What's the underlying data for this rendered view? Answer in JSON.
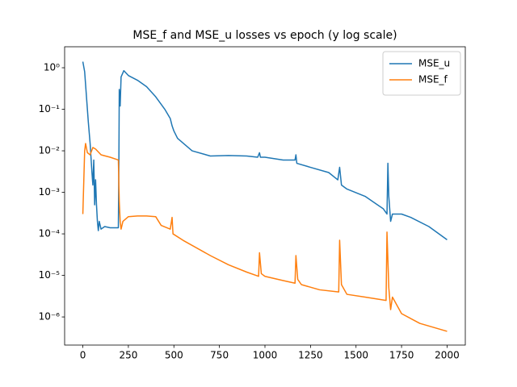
{
  "chart_data": {
    "type": "line",
    "title": "MSE_f and MSE_u losses vs epoch (y log scale)",
    "xlim": [
      -100,
      2100
    ],
    "xticks": [
      0,
      250,
      500,
      750,
      1000,
      1250,
      1500,
      1750,
      2000
    ],
    "ylim": [
      2.1e-07,
      3.2
    ],
    "log_y": true,
    "legend": "upper right",
    "yticks": [
      {
        "value": 1e-06,
        "label": "10⁻⁶"
      },
      {
        "value": 1e-05,
        "label": "10⁻⁵"
      },
      {
        "value": 0.0001,
        "label": "10⁻⁴"
      },
      {
        "value": 0.001,
        "label": "10⁻³"
      },
      {
        "value": 0.01,
        "label": "10⁻²"
      },
      {
        "value": 0.1,
        "label": "10⁻¹"
      },
      {
        "value": 1,
        "label": "10⁰"
      }
    ],
    "series": [
      {
        "name": "MSE_u",
        "color": "#1f77b4",
        "x": [
          0,
          10,
          20,
          30,
          40,
          50,
          55,
          60,
          65,
          70,
          75,
          80,
          85,
          90,
          100,
          120,
          150,
          195,
          198,
          200,
          205,
          210,
          225,
          250,
          300,
          350,
          400,
          450,
          480,
          490,
          500,
          520,
          600,
          700,
          800,
          900,
          960,
          970,
          975,
          1000,
          1100,
          1165,
          1170,
          1175,
          1250,
          1350,
          1400,
          1410,
          1420,
          1450,
          1550,
          1650,
          1670,
          1675,
          1680,
          1690,
          1700,
          1750,
          1800,
          1900,
          2000
        ],
        "values": [
          1.4,
          0.8,
          0.2,
          0.05,
          0.015,
          0.003,
          0.0015,
          0.006,
          0.0005,
          0.002,
          0.0005,
          0.0002,
          0.00012,
          0.0002,
          0.00013,
          0.00015,
          0.00014,
          0.00014,
          0.006,
          0.3,
          0.12,
          0.6,
          0.85,
          0.65,
          0.5,
          0.35,
          0.2,
          0.1,
          0.06,
          0.04,
          0.03,
          0.02,
          0.01,
          0.0075,
          0.0077,
          0.0075,
          0.007,
          0.009,
          0.007,
          0.007,
          0.006,
          0.006,
          0.008,
          0.005,
          0.004,
          0.003,
          0.002,
          0.004,
          0.0015,
          0.0012,
          0.0008,
          0.0004,
          0.0003,
          0.005,
          0.0008,
          0.0002,
          0.0003,
          0.0003,
          0.00025,
          0.00015,
          7.2e-05
        ]
      },
      {
        "name": "MSE_f",
        "color": "#ff7f0e",
        "x": [
          0,
          10,
          15,
          25,
          40,
          55,
          70,
          100,
          150,
          195,
          200,
          205,
          210,
          220,
          250,
          300,
          350,
          400,
          430,
          480,
          490,
          495,
          550,
          700,
          800,
          900,
          965,
          970,
          980,
          1000,
          1100,
          1165,
          1170,
          1180,
          1200,
          1300,
          1405,
          1410,
          1420,
          1450,
          1550,
          1665,
          1670,
          1680,
          1690,
          1700,
          1750,
          1850,
          2000
        ],
        "values": [
          0.0003,
          0.01,
          0.015,
          0.009,
          0.008,
          0.012,
          0.011,
          0.008,
          0.007,
          0.006,
          0.0006,
          0.0002,
          0.00013,
          0.0002,
          0.00026,
          0.00027,
          0.00027,
          0.00026,
          0.00016,
          0.00013,
          0.00025,
          0.0001,
          7e-05,
          3e-05,
          1.8e-05,
          1.2e-05,
          9.5e-06,
          3.5e-05,
          1.1e-05,
          9.5e-06,
          7.5e-06,
          6.5e-06,
          3e-05,
          8e-06,
          6e-06,
          4.5e-06,
          4e-06,
          7e-05,
          6e-06,
          3.5e-06,
          3e-06,
          2.5e-06,
          0.00011,
          5e-06,
          1.5e-06,
          3e-06,
          1.2e-06,
          7e-07,
          4.5e-07
        ]
      }
    ]
  }
}
